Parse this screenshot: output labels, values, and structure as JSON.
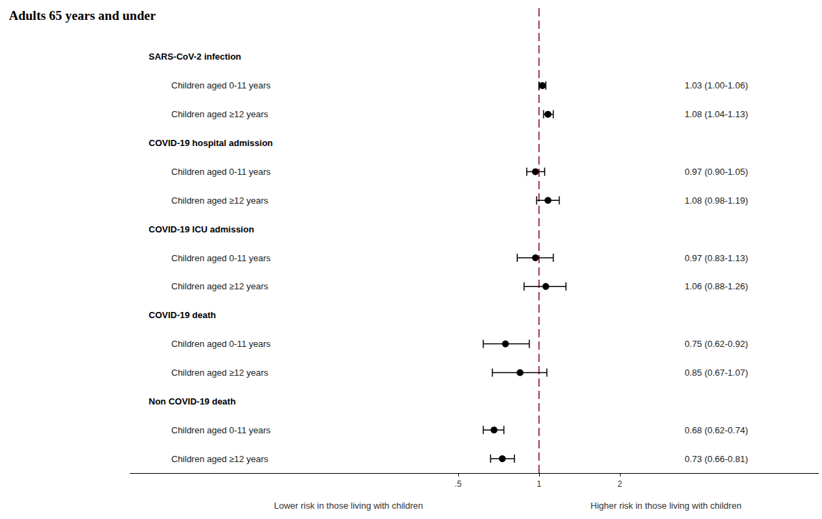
{
  "chart_data": {
    "type": "forest",
    "title": "Adults 65 years and under",
    "groups": [
      {
        "name": "SARS-CoV-2 infection",
        "categories": [
          "Children aged 0-11 years",
          "Children aged ≥12 years"
        ],
        "values": [
          1.03,
          1.08
        ],
        "lower": [
          1.0,
          1.04
        ],
        "upper": [
          1.06,
          1.13
        ],
        "value_labels": [
          "1.03 (1.00-1.06)",
          "1.08 (1.04-1.13)"
        ]
      },
      {
        "name": "COVID-19 hospital admission",
        "categories": [
          "Children aged 0-11 years",
          "Children aged ≥12 years"
        ],
        "values": [
          0.97,
          1.08
        ],
        "lower": [
          0.9,
          0.98
        ],
        "upper": [
          1.05,
          1.19
        ],
        "value_labels": [
          "0.97 (0.90-1.05)",
          "1.08 (0.98-1.19)"
        ]
      },
      {
        "name": "COVID-19 ICU admission",
        "categories": [
          "Children aged 0-11 years",
          "Children aged ≥12 years"
        ],
        "values": [
          0.97,
          1.06
        ],
        "lower": [
          0.83,
          0.88
        ],
        "upper": [
          1.13,
          1.26
        ],
        "value_labels": [
          "0.97 (0.83-1.13)",
          "1.06 (0.88-1.26)"
        ]
      },
      {
        "name": "COVID-19 death",
        "categories": [
          "Children aged 0-11 years",
          "Children aged ≥12 years"
        ],
        "values": [
          0.75,
          0.85
        ],
        "lower": [
          0.62,
          0.67
        ],
        "upper": [
          0.92,
          1.07
        ],
        "value_labels": [
          "0.75 (0.62-0.92)",
          "0.85 (0.67-1.07)"
        ]
      },
      {
        "name": "Non COVID-19 death",
        "categories": [
          "Children aged 0-11 years",
          "Children aged ≥12 years"
        ],
        "values": [
          0.68,
          0.73
        ],
        "lower": [
          0.62,
          0.66
        ],
        "upper": [
          0.74,
          0.81
        ],
        "value_labels": [
          "0.68 (0.62-0.74)",
          "0.73 (0.66-0.81)"
        ]
      }
    ],
    "xlim": [
      0.03,
      11
    ],
    "xticks": [
      {
        "value": 0.5,
        "label": ".5"
      },
      1,
      2
    ],
    "log": "x",
    "grid": false,
    "reference_line": 1,
    "line_style": "dashed",
    "marker": "circle",
    "color": "#000000",
    "annotations": [
      "Lower risk in those living with children",
      "Higher risk in those living with children"
    ]
  }
}
